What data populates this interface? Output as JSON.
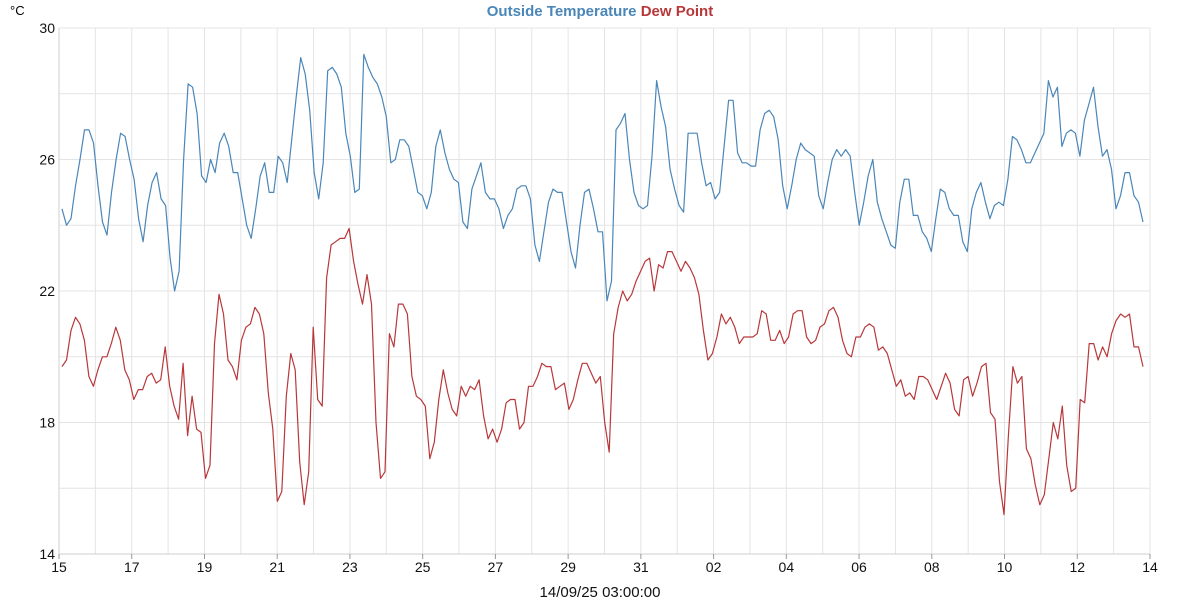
{
  "chart_data": {
    "type": "line",
    "title_parts": [
      {
        "text": "Outside Temperature",
        "color": "#4a86b8"
      },
      {
        "text": "Dew Point",
        "color": "#b8383a"
      }
    ],
    "unit": "°C",
    "xlabel": "14/09/25 03:00:00",
    "ylim": [
      14,
      30
    ],
    "yticks": [
      "30",
      "26",
      "22",
      "18",
      "14"
    ],
    "xticks": [
      "15",
      "17",
      "19",
      "21",
      "23",
      "25",
      "27",
      "29",
      "31",
      "02",
      "04",
      "06",
      "08",
      "10",
      "12",
      "14"
    ],
    "x_start": "2025-08-15",
    "x_end": "2025-09-14",
    "grid": true,
    "series": [
      {
        "name": "Outside Temperature",
        "color": "#4a86b8",
        "values": [
          24.5,
          24.0,
          24.2,
          25.2,
          26.0,
          26.9,
          26.9,
          26.5,
          25.2,
          24.1,
          23.7,
          25.0,
          26.0,
          26.8,
          26.7,
          26.0,
          25.4,
          24.2,
          23.5,
          24.6,
          25.3,
          25.6,
          24.8,
          24.6,
          23.0,
          22.0,
          22.6,
          26.0,
          28.3,
          28.2,
          27.4,
          25.5,
          25.3,
          26.0,
          25.6,
          26.5,
          26.8,
          26.4,
          25.6,
          25.6,
          24.8,
          24.0,
          23.6,
          24.5,
          25.5,
          25.9,
          25.0,
          25.0,
          26.1,
          25.9,
          25.3,
          26.6,
          27.9,
          29.1,
          28.6,
          27.5,
          25.6,
          24.8,
          25.9,
          28.7,
          28.8,
          28.6,
          28.2,
          26.8,
          26.1,
          25.0,
          25.1,
          29.2,
          28.8,
          28.5,
          28.3,
          27.9,
          27.3,
          25.9,
          26.0,
          26.6,
          26.6,
          26.4,
          25.7,
          25.0,
          24.9,
          24.5,
          25.0,
          26.4,
          26.9,
          26.2,
          25.7,
          25.4,
          25.3,
          24.1,
          23.9,
          25.1,
          25.5,
          25.9,
          25.0,
          24.8,
          24.8,
          24.5,
          23.9,
          24.3,
          24.5,
          25.1,
          25.2,
          25.2,
          24.8,
          23.4,
          22.9,
          23.8,
          24.7,
          25.1,
          25.0,
          25.0,
          24.1,
          23.2,
          22.7,
          24.0,
          25.0,
          25.1,
          24.5,
          23.8,
          23.8,
          21.7,
          22.3,
          26.9,
          27.1,
          27.4,
          26.0,
          25.0,
          24.6,
          24.5,
          24.6,
          26.1,
          28.4,
          27.6,
          27.0,
          25.7,
          25.1,
          24.6,
          24.4,
          26.8,
          26.8,
          26.8,
          25.9,
          25.2,
          25.3,
          24.8,
          25.0,
          26.4,
          27.8,
          27.8,
          26.2,
          25.9,
          25.9,
          25.8,
          25.8,
          26.9,
          27.4,
          27.5,
          27.3,
          26.6,
          25.2,
          24.5,
          25.2,
          26.0,
          26.5,
          26.3,
          26.2,
          26.1,
          24.9,
          24.5,
          25.3,
          26.0,
          26.3,
          26.1,
          26.3,
          26.1,
          25.0,
          24.0,
          24.7,
          25.5,
          26.0,
          24.7,
          24.2,
          23.8,
          23.4,
          23.3,
          24.7,
          25.4,
          25.4,
          24.3,
          24.3,
          23.8,
          23.6,
          23.2,
          24.2,
          25.1,
          25.0,
          24.5,
          24.3,
          24.3,
          23.5,
          23.2,
          24.5,
          25.0,
          25.3,
          24.7,
          24.2,
          24.6,
          24.7,
          24.6,
          25.4,
          26.7,
          26.6,
          26.3,
          25.9,
          25.9,
          26.2,
          26.5,
          26.8,
          28.4,
          27.9,
          28.2,
          26.4,
          26.8,
          26.9,
          26.8,
          26.1,
          27.2,
          27.7,
          28.2,
          27.0,
          26.1,
          26.3,
          25.7,
          24.5,
          24.9,
          25.6,
          25.6,
          24.9,
          24.7,
          24.1
        ]
      },
      {
        "name": "Dew Point",
        "color": "#b8383a",
        "values": [
          19.7,
          19.9,
          20.8,
          21.2,
          21.0,
          20.5,
          19.4,
          19.1,
          19.6,
          20.0,
          20.0,
          20.4,
          20.9,
          20.5,
          19.6,
          19.3,
          18.7,
          19.0,
          19.0,
          19.4,
          19.5,
          19.2,
          19.3,
          20.3,
          19.1,
          18.5,
          18.1,
          19.8,
          17.6,
          18.8,
          17.8,
          17.7,
          16.3,
          16.7,
          20.4,
          21.9,
          21.3,
          19.9,
          19.7,
          19.3,
          20.5,
          20.9,
          21.0,
          21.5,
          21.3,
          20.7,
          18.9,
          17.8,
          15.6,
          15.9,
          18.8,
          20.1,
          19.6,
          16.8,
          15.5,
          16.5,
          20.9,
          18.7,
          18.5,
          22.4,
          23.4,
          23.5,
          23.6,
          23.6,
          23.9,
          22.9,
          22.2,
          21.6,
          22.5,
          21.6,
          18.0,
          16.3,
          16.5,
          20.7,
          20.3,
          21.6,
          21.6,
          21.3,
          19.4,
          18.8,
          18.7,
          18.5,
          16.9,
          17.4,
          18.7,
          19.6,
          18.9,
          18.4,
          18.2,
          19.1,
          18.8,
          19.1,
          19.0,
          19.3,
          18.2,
          17.5,
          17.8,
          17.4,
          17.8,
          18.6,
          18.7,
          18.7,
          17.8,
          18.0,
          19.1,
          19.1,
          19.4,
          19.8,
          19.7,
          19.7,
          19.0,
          19.1,
          19.2,
          18.4,
          18.7,
          19.3,
          19.8,
          19.8,
          19.5,
          19.2,
          19.4,
          18.0,
          17.1,
          20.7,
          21.5,
          22.0,
          21.7,
          21.9,
          22.3,
          22.6,
          22.9,
          23.0,
          22.0,
          22.8,
          22.7,
          23.2,
          23.2,
          22.9,
          22.6,
          22.9,
          22.7,
          22.4,
          21.9,
          20.8,
          19.9,
          20.1,
          20.6,
          21.3,
          21.0,
          21.2,
          20.9,
          20.4,
          20.6,
          20.6,
          20.6,
          20.7,
          21.4,
          21.3,
          20.5,
          20.5,
          20.8,
          20.4,
          20.6,
          21.3,
          21.4,
          21.4,
          20.6,
          20.4,
          20.5,
          20.9,
          21.0,
          21.4,
          21.5,
          21.2,
          20.5,
          20.1,
          20.0,
          20.6,
          20.6,
          20.9,
          21.0,
          20.9,
          20.2,
          20.3,
          20.1,
          19.6,
          19.1,
          19.3,
          18.8,
          18.9,
          18.7,
          19.4,
          19.4,
          19.3,
          19.0,
          18.7,
          19.1,
          19.5,
          19.2,
          18.4,
          18.2,
          19.3,
          19.4,
          18.8,
          19.2,
          19.7,
          19.8,
          18.3,
          18.1,
          16.2,
          15.2,
          17.6,
          19.7,
          19.2,
          19.4,
          17.2,
          16.9,
          16.1,
          15.5,
          15.8,
          16.9,
          18.0,
          17.5,
          18.5,
          16.7,
          15.9,
          16.0,
          18.7,
          18.6,
          20.4,
          20.4,
          19.9,
          20.3,
          20.0,
          20.7,
          21.1,
          21.3,
          21.2,
          21.3,
          20.3,
          20.3,
          19.7
        ]
      }
    ]
  }
}
